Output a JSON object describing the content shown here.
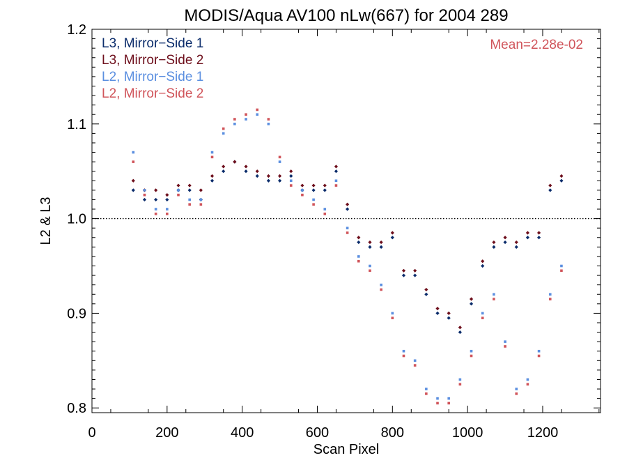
{
  "chart_data": {
    "type": "scatter",
    "title": "MODIS/Aqua AV100 nLw(667) for 2004 289",
    "xlabel": "Scan Pixel",
    "ylabel": "L2 & L3",
    "xlim": [
      0,
      1354
    ],
    "ylim": [
      0.795,
      1.2
    ],
    "xticks": [
      0,
      200,
      400,
      600,
      800,
      1000,
      1200
    ],
    "yticks": [
      0.8,
      0.9,
      1.0,
      1.1,
      1.2
    ],
    "xtick_labels": [
      "0",
      "200",
      "400",
      "600",
      "800",
      "1000",
      "1200"
    ],
    "ytick_labels": [
      "0.8",
      "0.9",
      "1.0",
      "1.1",
      "1.2"
    ],
    "reference_line": {
      "y": 1.0,
      "style": "dotted"
    },
    "annotation": "Mean=2.28e-02",
    "annotation_color": "#d0545a",
    "legend_position": "top-left",
    "grid": false,
    "series": [
      {
        "name": "L3, Mirror−Side 1",
        "color": "#0b2c6b",
        "marker": "diamond",
        "x": [
          110,
          140,
          170,
          200,
          230,
          260,
          290,
          320,
          350,
          380,
          410,
          440,
          470,
          500,
          530,
          560,
          590,
          620,
          650,
          680,
          710,
          740,
          770,
          800,
          830,
          860,
          890,
          920,
          950,
          980,
          1010,
          1040,
          1070,
          1100,
          1130,
          1160,
          1190,
          1220,
          1250
        ],
        "y": [
          1.03,
          1.02,
          1.02,
          1.02,
          1.03,
          1.03,
          1.02,
          1.04,
          1.05,
          1.06,
          1.05,
          1.045,
          1.04,
          1.04,
          1.045,
          1.03,
          1.03,
          1.03,
          1.05,
          1.01,
          0.975,
          0.97,
          0.97,
          0.98,
          0.94,
          0.94,
          0.92,
          0.9,
          0.895,
          0.88,
          0.91,
          0.95,
          0.97,
          0.975,
          0.97,
          0.98,
          0.98,
          1.03,
          1.04
        ]
      },
      {
        "name": "L3, Mirror−Side 2",
        "color": "#6e0f1c",
        "marker": "diamond",
        "x": [
          110,
          140,
          170,
          200,
          230,
          260,
          290,
          320,
          350,
          380,
          410,
          440,
          470,
          500,
          530,
          560,
          590,
          620,
          650,
          680,
          710,
          740,
          770,
          800,
          830,
          860,
          890,
          920,
          950,
          980,
          1010,
          1040,
          1070,
          1100,
          1130,
          1160,
          1190,
          1220,
          1250
        ],
        "y": [
          1.04,
          1.03,
          1.03,
          1.025,
          1.035,
          1.035,
          1.03,
          1.045,
          1.055,
          1.06,
          1.055,
          1.05,
          1.045,
          1.045,
          1.05,
          1.035,
          1.035,
          1.035,
          1.055,
          1.015,
          0.98,
          0.975,
          0.975,
          0.985,
          0.945,
          0.945,
          0.925,
          0.905,
          0.9,
          0.885,
          0.915,
          0.955,
          0.975,
          0.98,
          0.975,
          0.985,
          0.985,
          1.035,
          1.045
        ]
      },
      {
        "name": "L2, Mirror−Side 1",
        "color": "#5b8fe0",
        "marker": "square",
        "x": [
          110,
          140,
          170,
          200,
          230,
          260,
          290,
          320,
          350,
          380,
          410,
          440,
          470,
          500,
          530,
          560,
          590,
          620,
          650,
          680,
          710,
          740,
          770,
          800,
          830,
          860,
          890,
          920,
          950,
          980,
          1010,
          1040,
          1070,
          1100,
          1130,
          1160,
          1190,
          1220,
          1250
        ],
        "y": [
          1.07,
          1.03,
          1.01,
          1.01,
          1.03,
          1.02,
          1.02,
          1.07,
          1.09,
          1.1,
          1.105,
          1.11,
          1.1,
          1.06,
          1.04,
          1.03,
          1.02,
          1.01,
          1.04,
          0.99,
          0.96,
          0.95,
          0.93,
          0.9,
          0.86,
          0.85,
          0.82,
          0.81,
          0.81,
          0.83,
          0.86,
          0.9,
          0.92,
          0.87,
          0.82,
          0.83,
          0.86,
          0.92,
          0.95
        ]
      },
      {
        "name": "L2, Mirror−Side 2",
        "color": "#d0545a",
        "marker": "square",
        "x": [
          110,
          140,
          170,
          200,
          230,
          260,
          290,
          320,
          350,
          380,
          410,
          440,
          470,
          500,
          530,
          560,
          590,
          620,
          650,
          680,
          710,
          740,
          770,
          800,
          830,
          860,
          890,
          920,
          950,
          980,
          1010,
          1040,
          1070,
          1100,
          1130,
          1160,
          1190,
          1220,
          1250
        ],
        "y": [
          1.06,
          1.025,
          1.005,
          1.005,
          1.025,
          1.015,
          1.015,
          1.065,
          1.095,
          1.105,
          1.11,
          1.115,
          1.105,
          1.065,
          1.035,
          1.025,
          1.015,
          1.005,
          1.035,
          0.985,
          0.955,
          0.945,
          0.925,
          0.895,
          0.855,
          0.845,
          0.815,
          0.805,
          0.805,
          0.825,
          0.855,
          0.895,
          0.915,
          0.865,
          0.815,
          0.825,
          0.855,
          0.915,
          0.945
        ]
      }
    ]
  }
}
